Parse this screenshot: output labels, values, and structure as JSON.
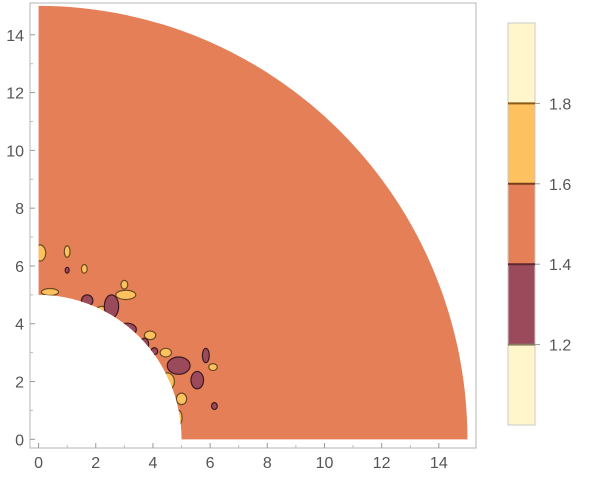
{
  "chart_data": {
    "type": "contour",
    "title": "",
    "xlabel": "",
    "ylabel": "",
    "xlim": [
      -0.3,
      15.3
    ],
    "ylim": [
      -0.3,
      15.1
    ],
    "x_ticks": [
      "0",
      "2",
      "4",
      "6",
      "8",
      "10",
      "12",
      "14"
    ],
    "y_ticks": [
      "0",
      "2",
      "4",
      "6",
      "8",
      "10",
      "12",
      "14"
    ],
    "domain": {
      "shape": "annulus-quarter",
      "inner_radius": 5,
      "outer_radius": 15
    },
    "dominant_level_band": [
      1.4,
      1.6
    ],
    "colorbar": {
      "ticks": [
        "1.2",
        "1.4",
        "1.6",
        "1.8"
      ],
      "range": [
        1.0,
        2.0
      ],
      "bands": [
        {
          "from": 1.0,
          "to": 1.2,
          "color": "#fff6cc"
        },
        {
          "from": 1.2,
          "to": 1.4,
          "color": "#9b4a5c"
        },
        {
          "from": 1.4,
          "to": 1.6,
          "color": "#e57f57"
        },
        {
          "from": 1.6,
          "to": 1.8,
          "color": "#fdc160"
        },
        {
          "from": 1.8,
          "to": 2.0,
          "color": "#fff6cc"
        }
      ],
      "separator_colors": [
        "#8a7a60",
        "#5e2630",
        "#7a3d1f",
        "#8a5a1a"
      ]
    },
    "blobs_high": [
      {
        "x": 0.05,
        "y": 6.45,
        "rx": 0.2,
        "ry": 0.28
      },
      {
        "x": 1.0,
        "y": 6.5,
        "rx": 0.1,
        "ry": 0.2
      },
      {
        "x": 1.6,
        "y": 5.9,
        "rx": 0.1,
        "ry": 0.15
      },
      {
        "x": 3.0,
        "y": 5.35,
        "rx": 0.12,
        "ry": 0.15
      },
      {
        "x": 3.05,
        "y": 5.0,
        "rx": 0.35,
        "ry": 0.16
      },
      {
        "x": 0.4,
        "y": 5.1,
        "rx": 0.3,
        "ry": 0.12
      },
      {
        "x": 2.2,
        "y": 4.4,
        "rx": 0.22,
        "ry": 0.2
      },
      {
        "x": 3.9,
        "y": 3.6,
        "rx": 0.2,
        "ry": 0.15
      },
      {
        "x": 4.45,
        "y": 3.0,
        "rx": 0.2,
        "ry": 0.15
      },
      {
        "x": 4.5,
        "y": 2.0,
        "rx": 0.25,
        "ry": 0.3
      },
      {
        "x": 5.0,
        "y": 1.4,
        "rx": 0.18,
        "ry": 0.2
      },
      {
        "x": 4.9,
        "y": 0.75,
        "rx": 0.12,
        "ry": 0.25
      },
      {
        "x": 6.1,
        "y": 2.5,
        "rx": 0.15,
        "ry": 0.12
      }
    ],
    "blobs_low": [
      {
        "x": 2.55,
        "y": 4.6,
        "rx": 0.25,
        "ry": 0.4
      },
      {
        "x": 1.7,
        "y": 4.8,
        "rx": 0.2,
        "ry": 0.2
      },
      {
        "x": 3.1,
        "y": 3.8,
        "rx": 0.32,
        "ry": 0.22
      },
      {
        "x": 3.7,
        "y": 3.3,
        "rx": 0.15,
        "ry": 0.2
      },
      {
        "x": 4.9,
        "y": 2.55,
        "rx": 0.4,
        "ry": 0.3
      },
      {
        "x": 5.55,
        "y": 2.05,
        "rx": 0.22,
        "ry": 0.3
      },
      {
        "x": 5.85,
        "y": 2.9,
        "rx": 0.12,
        "ry": 0.25
      },
      {
        "x": 6.15,
        "y": 1.15,
        "rx": 0.1,
        "ry": 0.12
      },
      {
        "x": 4.05,
        "y": 3.05,
        "rx": 0.12,
        "ry": 0.12
      },
      {
        "x": 1.0,
        "y": 5.85,
        "rx": 0.07,
        "ry": 0.1
      }
    ]
  }
}
